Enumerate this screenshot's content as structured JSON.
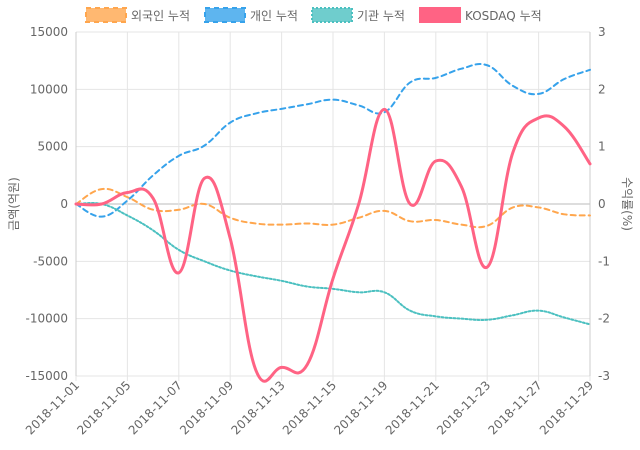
{
  "chart_data": {
    "type": "line",
    "x": [
      "2018-11-01",
      "2018-11-02",
      "2018-11-05",
      "2018-11-06",
      "2018-11-07",
      "2018-11-08",
      "2018-11-09",
      "2018-11-12",
      "2018-11-13",
      "2018-11-14",
      "2018-11-15",
      "2018-11-16",
      "2018-11-19",
      "2018-11-20",
      "2018-11-21",
      "2018-11-22",
      "2018-11-23",
      "2018-11-26",
      "2018-11-27",
      "2018-11-28",
      "2018-11-29"
    ],
    "x_tick_labels": [
      "2018-11-01",
      "2018-11-05",
      "2018-11-07",
      "2018-11-09",
      "2018-11-13",
      "2018-11-15",
      "2018-11-19",
      "2018-11-21",
      "2018-11-23",
      "2018-11-27",
      "2018-11-29"
    ],
    "y_left": {
      "label": "금액(억원)",
      "range": [
        -15000,
        15000
      ],
      "ticks": [
        15000,
        10000,
        5000,
        0,
        -5000,
        -10000,
        -15000
      ]
    },
    "y_right": {
      "label": "수익률(%)",
      "range": [
        -3,
        3
      ],
      "ticks": [
        3,
        2,
        1,
        0,
        -1,
        -2,
        -3
      ]
    },
    "series": [
      {
        "name": "외국인 누적",
        "axis": "left",
        "color": "#ffa64d",
        "style": "dashed",
        "values": [
          0,
          1300,
          600,
          -500,
          -500,
          0,
          -1200,
          -1700,
          -1800,
          -1700,
          -1800,
          -1200,
          -600,
          -1500,
          -1400,
          -1800,
          -1900,
          -300,
          -300,
          -900,
          -1000
        ]
      },
      {
        "name": "개인 누적",
        "axis": "left",
        "color": "#36a2eb",
        "style": "dashed",
        "values": [
          0,
          -1100,
          300,
          2500,
          4200,
          5100,
          7100,
          7900,
          8300,
          8700,
          9100,
          8600,
          8000,
          10600,
          11000,
          11800,
          12100,
          10300,
          9600,
          10900,
          11700
        ]
      },
      {
        "name": "기관 누적",
        "axis": "left",
        "color": "#4bc0c0",
        "style": "dotted",
        "values": [
          0,
          0,
          -1000,
          -2300,
          -4000,
          -5000,
          -5800,
          -6300,
          -6700,
          -7200,
          -7400,
          -7700,
          -7700,
          -9300,
          -9800,
          -10000,
          -10100,
          -9700,
          -9300,
          -9900,
          -10500
        ]
      },
      {
        "name": "KOSDAQ 누적",
        "axis": "right",
        "color": "#ff6384",
        "style": "solid",
        "values": [
          0,
          0,
          0.2,
          0.1,
          -1.2,
          0.45,
          -0.6,
          -2.9,
          -2.85,
          -2.8,
          -1.3,
          0,
          1.65,
          0,
          0.75,
          0.3,
          -1.1,
          0.9,
          1.5,
          1.35,
          0.7
        ]
      }
    ]
  }
}
